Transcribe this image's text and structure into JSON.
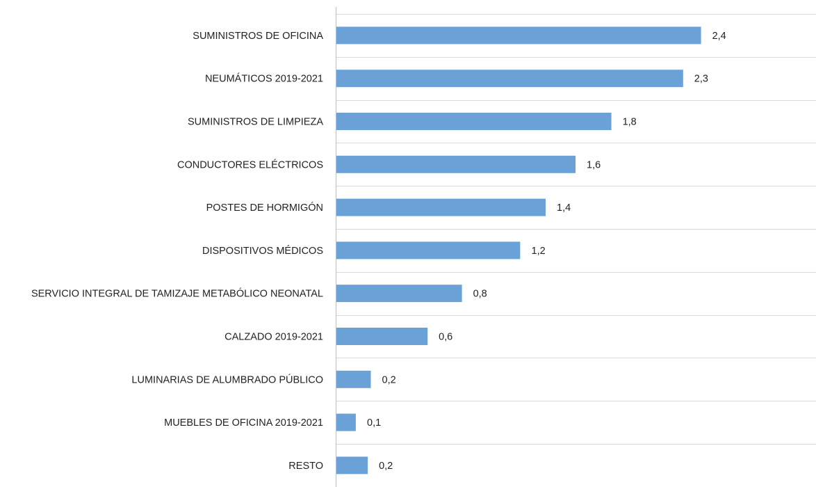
{
  "chart_data": {
    "type": "bar",
    "orientation": "horizontal",
    "title": "",
    "xlabel": "",
    "ylabel": "",
    "categories": [
      "SUMINISTROS DE OFICINA",
      "NEUMÁTICOS 2019-2021",
      "SUMINISTROS DE LIMPIEZA",
      "CONDUCTORES ELÉCTRICOS",
      "POSTES DE HORMIGÓN",
      "DISPOSITIVOS MÉDICOS",
      "SERVICIO INTEGRAL DE TAMIZAJE METABÓLICO NEONATAL",
      "CALZADO 2019-2021",
      "LUMINARIAS DE ALUMBRADO PÚBLICO",
      "MUEBLES DE OFICINA 2019-2021",
      "RESTO"
    ],
    "values": [
      2.4,
      2.3,
      1.8,
      1.6,
      1.4,
      1.2,
      0.8,
      0.6,
      0.2,
      0.1,
      0.2
    ],
    "data_labels": [
      "2,4",
      "2,3",
      "1,8",
      "1,6",
      "1,4",
      "1,2",
      "0,8",
      "0,6",
      "0,2",
      "0,1",
      "0,2"
    ],
    "bar_display_values": [
      2.44,
      2.32,
      1.84,
      1.6,
      1.4,
      1.23,
      0.84,
      0.61,
      0.23,
      0.13,
      0.21
    ],
    "xlim": [
      0,
      3.0
    ],
    "grid": true,
    "legend": "none",
    "colors": {
      "bar": "#6aa2d8",
      "grid": "#d9d9d9",
      "axis": "#bfbfbf",
      "text": "#222222"
    }
  }
}
